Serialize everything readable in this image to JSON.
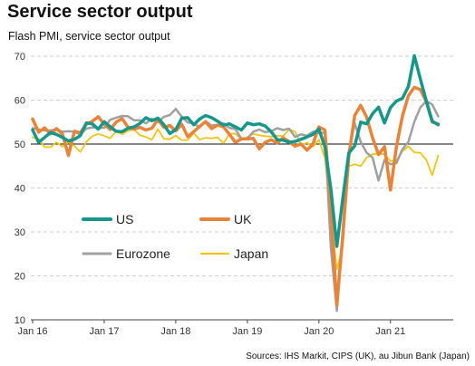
{
  "title": "Service sector output",
  "subtitle": "Flash PMI, service sector output",
  "source": "Sources: IHS Markit, CIPS (UK), au Jibun Bank (Japan)",
  "chart_data": {
    "type": "line",
    "ylim": [
      10,
      70
    ],
    "y_ticks": [
      10,
      20,
      30,
      40,
      50,
      60,
      70
    ],
    "x_range": [
      "2016-01",
      "2021-09"
    ],
    "x_ticks": [
      {
        "label": "Jan 16",
        "date": "2016-01"
      },
      {
        "label": "Jan 17",
        "date": "2017-01"
      },
      {
        "label": "Jan 18",
        "date": "2018-01"
      },
      {
        "label": "Jan 19",
        "date": "2019-01"
      },
      {
        "label": "Jan 20",
        "date": "2020-01"
      },
      {
        "label": "Jan 21",
        "date": "2021-01"
      }
    ],
    "reference_line": 50,
    "grid": "horizontal-dashed",
    "legend_position": "lower-left",
    "start": "2016-01",
    "series": [
      {
        "name": "US",
        "color": "#17968a",
        "width": 3.5,
        "values": [
          53.2,
          50.4,
          51.5,
          52.6,
          52.2,
          51.5,
          50.7,
          51.1,
          51.9,
          54.8,
          54.6,
          53.4,
          55.1,
          53.9,
          52.9,
          52.8,
          53.6,
          53.9,
          54.7,
          56.0,
          55.3,
          55.9,
          54.4,
          52.4,
          53.3,
          55.9,
          56.0,
          54.4,
          55.7,
          56.5,
          56.0,
          55.2,
          54.3,
          54.6,
          53.9,
          53.2,
          54.8,
          54.4,
          54.6,
          54.1,
          52.8,
          51.0,
          50.9,
          50.4,
          50.6,
          51.1,
          51.6,
          52.2,
          53.4,
          49.4,
          39.8,
          26.7,
          37.5,
          47.9,
          49.6,
          55.0,
          54.6,
          56.9,
          58.4,
          54.8,
          58.3,
          59.8,
          60.4,
          63.1,
          70.1,
          64.8,
          59.8,
          55.2,
          54.4
        ]
      },
      {
        "name": "UK",
        "color": "#e8833a",
        "width": 3.5,
        "values": [
          55.7,
          52.7,
          53.7,
          52.3,
          53.5,
          52.3,
          47.4,
          52.9,
          52.6,
          54.5,
          55.2,
          56.2,
          54.5,
          53.3,
          55.0,
          55.8,
          53.8,
          53.4,
          53.8,
          53.2,
          53.6,
          55.6,
          53.8,
          54.2,
          53.0,
          54.5,
          51.7,
          52.8,
          54.0,
          55.1,
          53.5,
          54.3,
          53.9,
          52.2,
          50.4,
          51.2,
          51.2,
          51.3,
          48.9,
          50.4,
          51.0,
          50.2,
          51.4,
          50.6,
          49.5,
          50.0,
          48.6,
          50.0,
          53.9,
          53.2,
          34.5,
          13.4,
          29.0,
          47.1,
          56.5,
          58.8,
          56.1,
          51.4,
          47.6,
          49.4,
          39.5,
          49.5,
          56.3,
          61.0,
          62.9,
          62.4,
          59.6,
          55.0,
          54.6
        ]
      },
      {
        "name": "Eurozone",
        "color": "#a0a0a0",
        "width": 2.5,
        "values": [
          53.6,
          53.3,
          53.1,
          53.1,
          53.3,
          52.8,
          52.9,
          52.8,
          52.2,
          53.5,
          53.8,
          53.7,
          53.7,
          55.5,
          56.0,
          56.4,
          56.3,
          55.4,
          55.4,
          54.7,
          55.8,
          55.0,
          56.2,
          56.6,
          58.0,
          56.2,
          54.9,
          54.7,
          53.8,
          55.2,
          54.2,
          54.4,
          54.7,
          53.7,
          53.4,
          51.2,
          51.2,
          52.8,
          53.3,
          52.7,
          52.9,
          53.6,
          53.2,
          53.5,
          51.6,
          52.2,
          51.9,
          52.8,
          52.5,
          52.6,
          26.4,
          12.0,
          30.5,
          48.3,
          54.7,
          50.5,
          48.0,
          46.9,
          41.7,
          46.4,
          45.4,
          45.7,
          48.8,
          50.5,
          55.1,
          58.3,
          59.8,
          59.0,
          56.3
        ]
      },
      {
        "name": "Japan",
        "color": "#f0c419",
        "width": 1.8,
        "values": [
          51.5,
          51.2,
          49.3,
          49.3,
          50.4,
          49.4,
          50.4,
          49.6,
          48.2,
          50.5,
          51.8,
          52.3,
          51.9,
          51.3,
          52.9,
          52.2,
          53.0,
          53.3,
          52.0,
          51.6,
          51.0,
          53.4,
          51.2,
          51.1,
          51.9,
          50.9,
          50.9,
          52.5,
          51.0,
          51.4,
          51.3,
          51.5,
          50.2,
          52.3,
          52.4,
          51.0,
          51.6,
          52.3,
          52.0,
          51.8,
          51.7,
          51.9,
          51.8,
          53.3,
          52.8,
          49.7,
          50.3,
          49.4,
          51.0,
          46.8,
          33.8,
          21.5,
          26.5,
          45.0,
          45.4,
          45.0,
          46.9,
          47.7,
          47.8,
          47.7,
          46.1,
          46.3,
          48.3,
          49.5,
          48.1,
          48.0,
          46.4,
          42.9,
          47.4
        ]
      }
    ]
  }
}
